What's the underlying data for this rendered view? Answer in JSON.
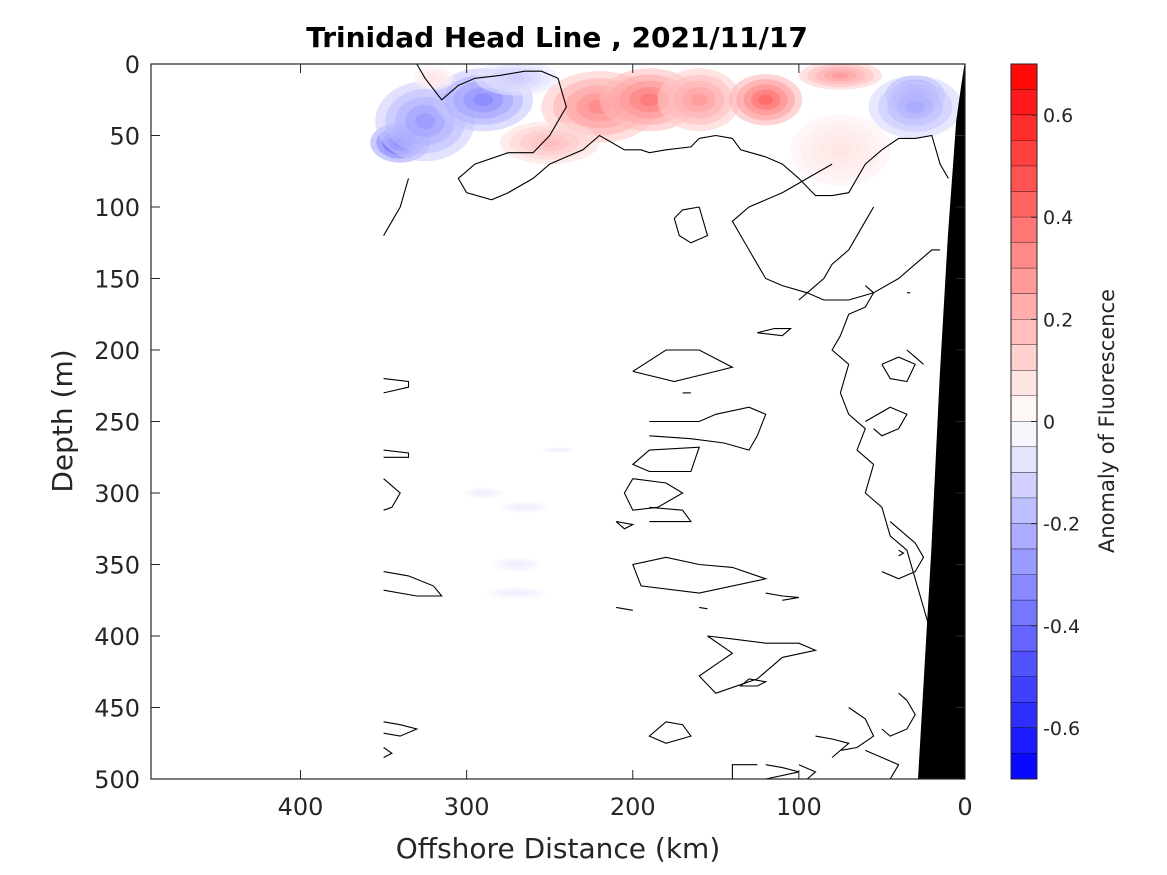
{
  "chart_data": {
    "type": "heatmap",
    "title": "Trinidad Head Line , 2021/11/17",
    "xlabel": "Offshore Distance (km)",
    "ylabel": "Depth (m)",
    "x_reversed": true,
    "y_reversed": true,
    "xlim": [
      490,
      0
    ],
    "ylim": [
      0,
      500
    ],
    "xticks": [
      400,
      300,
      200,
      100,
      0
    ],
    "yticks": [
      0,
      50,
      100,
      150,
      200,
      250,
      300,
      350,
      400,
      450,
      500
    ],
    "colorbar": {
      "label": "Anomaly of Fluorescence",
      "range": [
        -0.7,
        0.7
      ],
      "ticks": [
        0.6,
        0.4,
        0.2,
        0,
        -0.2,
        -0.4,
        -0.6
      ],
      "levels": 28,
      "colors": {
        "low": "#0000ff",
        "zero": "#ffffff",
        "high": "#ff0000"
      }
    },
    "data_extent_km": [
      0,
      350
    ],
    "patches": [
      {
        "x": 340,
        "y": 55,
        "value": -0.55,
        "rx": 18,
        "ry": 14
      },
      {
        "x": 325,
        "y": 40,
        "value": -0.3,
        "rx": 30,
        "ry": 28
      },
      {
        "x": 290,
        "y": 25,
        "value": -0.35,
        "rx": 30,
        "ry": 22
      },
      {
        "x": 270,
        "y": 10,
        "value": -0.15,
        "rx": 25,
        "ry": 12
      },
      {
        "x": 320,
        "y": 10,
        "value": 0.08,
        "rx": 12,
        "ry": 8
      },
      {
        "x": 220,
        "y": 30,
        "value": 0.35,
        "rx": 35,
        "ry": 25
      },
      {
        "x": 190,
        "y": 25,
        "value": 0.4,
        "rx": 30,
        "ry": 22
      },
      {
        "x": 160,
        "y": 25,
        "value": 0.3,
        "rx": 25,
        "ry": 22
      },
      {
        "x": 120,
        "y": 25,
        "value": 0.45,
        "rx": 22,
        "ry": 18
      },
      {
        "x": 75,
        "y": 8,
        "value": 0.3,
        "rx": 25,
        "ry": 10
      },
      {
        "x": 75,
        "y": 60,
        "value": 0.08,
        "rx": 30,
        "ry": 25
      },
      {
        "x": 250,
        "y": 55,
        "value": 0.2,
        "rx": 30,
        "ry": 15
      },
      {
        "x": 30,
        "y": 22,
        "value": -0.55,
        "rx": 18,
        "ry": 14
      },
      {
        "x": 30,
        "y": 30,
        "value": -0.25,
        "rx": 28,
        "ry": 22
      },
      {
        "x": 290,
        "y": 300,
        "value": -0.05,
        "rx": 12,
        "ry": 4
      },
      {
        "x": 265,
        "y": 310,
        "value": -0.05,
        "rx": 15,
        "ry": 4
      },
      {
        "x": 270,
        "y": 350,
        "value": -0.05,
        "rx": 15,
        "ry": 5
      },
      {
        "x": 270,
        "y": 370,
        "value": -0.05,
        "rx": 18,
        "ry": 4
      },
      {
        "x": 245,
        "y": 270,
        "value": -0.05,
        "rx": 10,
        "ry": 2
      }
    ],
    "contours": [
      [
        [
          350,
          0
        ],
        [
          330,
          0
        ],
        [
          325,
          10
        ],
        [
          315,
          25
        ],
        [
          305,
          15
        ],
        [
          295,
          10
        ],
        [
          280,
          8
        ],
        [
          265,
          5
        ],
        [
          255,
          5
        ],
        [
          245,
          10
        ],
        [
          240,
          30
        ],
        [
          250,
          50
        ],
        [
          260,
          62
        ],
        [
          275,
          62
        ],
        [
          295,
          70
        ],
        [
          305,
          80
        ],
        [
          300,
          90
        ],
        [
          285,
          95
        ],
        [
          275,
          90
        ],
        [
          260,
          80
        ],
        [
          250,
          70
        ],
        [
          240,
          65
        ],
        [
          230,
          60
        ],
        [
          220,
          50
        ],
        [
          205,
          60
        ],
        [
          195,
          60
        ],
        [
          190,
          62
        ],
        [
          180,
          60
        ],
        [
          165,
          58
        ],
        [
          160,
          52
        ],
        [
          150,
          50
        ],
        [
          140,
          52
        ],
        [
          135,
          60
        ],
        [
          120,
          65
        ],
        [
          110,
          70
        ],
        [
          100,
          80
        ],
        [
          90,
          92
        ],
        [
          80,
          92
        ],
        [
          70,
          90
        ],
        [
          60,
          70
        ],
        [
          50,
          60
        ],
        [
          40,
          52
        ],
        [
          30,
          52
        ],
        [
          20,
          50
        ],
        [
          15,
          70
        ],
        [
          10,
          80
        ]
      ],
      [
        [
          350,
          120
        ],
        [
          345,
          110
        ],
        [
          340,
          100
        ],
        [
          335,
          80
        ]
      ],
      [
        [
          160,
          100
        ],
        [
          170,
          102
        ],
        [
          175,
          108
        ],
        [
          172,
          120
        ],
        [
          165,
          125
        ],
        [
          155,
          120
        ],
        [
          158,
          108
        ],
        [
          160,
          100
        ]
      ],
      [
        [
          80,
          70
        ],
        [
          95,
          80
        ],
        [
          110,
          90
        ],
        [
          130,
          100
        ],
        [
          140,
          110
        ],
        [
          130,
          130
        ],
        [
          125,
          140
        ],
        [
          120,
          150
        ],
        [
          110,
          155
        ],
        [
          95,
          160
        ],
        [
          85,
          165
        ],
        [
          70,
          165
        ],
        [
          55,
          160
        ],
        [
          40,
          150
        ],
        [
          30,
          140
        ],
        [
          20,
          130
        ],
        [
          15,
          130
        ]
      ],
      [
        [
          115,
          185
        ],
        [
          125,
          188
        ],
        [
          110,
          190
        ],
        [
          105,
          185
        ],
        [
          115,
          185
        ]
      ],
      [
        [
          200,
          215
        ],
        [
          180,
          200
        ],
        [
          160,
          200
        ],
        [
          140,
          212
        ],
        [
          150,
          215
        ],
        [
          175,
          222
        ],
        [
          200,
          215
        ]
      ],
      [
        [
          170,
          230
        ],
        [
          165,
          230
        ]
      ],
      [
        [
          350,
          220
        ],
        [
          335,
          222
        ],
        [
          335,
          226
        ],
        [
          350,
          230
        ]
      ],
      [
        [
          190,
          250
        ],
        [
          160,
          250
        ],
        [
          150,
          245
        ],
        [
          130,
          240
        ],
        [
          120,
          245
        ],
        [
          125,
          260
        ],
        [
          130,
          270
        ],
        [
          145,
          265
        ],
        [
          165,
          262
        ],
        [
          190,
          260
        ]
      ],
      [
        [
          190,
          270
        ],
        [
          160,
          268
        ],
        [
          165,
          285
        ],
        [
          190,
          285
        ],
        [
          200,
          280
        ],
        [
          190,
          270
        ]
      ],
      [
        [
          200,
          290
        ],
        [
          180,
          293
        ],
        [
          170,
          300
        ],
        [
          185,
          310
        ],
        [
          200,
          312
        ],
        [
          205,
          300
        ],
        [
          200,
          290
        ]
      ],
      [
        [
          190,
          310
        ],
        [
          170,
          312
        ],
        [
          165,
          320
        ],
        [
          190,
          320
        ]
      ],
      [
        [
          210,
          320
        ],
        [
          200,
          322
        ],
        [
          205,
          325
        ],
        [
          210,
          320
        ]
      ],
      [
        [
          350,
          270
        ],
        [
          335,
          272
        ],
        [
          335,
          275
        ],
        [
          350,
          275
        ]
      ],
      [
        [
          350,
          290
        ],
        [
          345,
          295
        ],
        [
          340,
          300
        ],
        [
          345,
          310
        ],
        [
          350,
          312
        ]
      ],
      [
        [
          180,
          345
        ],
        [
          160,
          350
        ],
        [
          140,
          352
        ],
        [
          120,
          360
        ],
        [
          160,
          370
        ],
        [
          195,
          365
        ],
        [
          200,
          350
        ],
        [
          180,
          345
        ]
      ],
      [
        [
          350,
          355
        ],
        [
          335,
          358
        ],
        [
          320,
          365
        ],
        [
          315,
          372
        ],
        [
          330,
          372
        ],
        [
          350,
          368
        ]
      ],
      [
        [
          120,
          370
        ],
        [
          110,
          372
        ],
        [
          100,
          373
        ],
        [
          110,
          375
        ]
      ],
      [
        [
          210,
          380
        ],
        [
          200,
          382
        ]
      ],
      [
        [
          160,
          380
        ],
        [
          155,
          381
        ]
      ],
      [
        [
          155,
          400
        ],
        [
          140,
          402
        ],
        [
          120,
          405
        ],
        [
          100,
          405
        ],
        [
          90,
          410
        ],
        [
          110,
          415
        ],
        [
          125,
          430
        ],
        [
          150,
          440
        ],
        [
          160,
          428
        ],
        [
          150,
          420
        ],
        [
          140,
          412
        ],
        [
          155,
          400
        ]
      ],
      [
        [
          130,
          430
        ],
        [
          120,
          432
        ],
        [
          125,
          435
        ],
        [
          135,
          435
        ],
        [
          130,
          430
        ]
      ],
      [
        [
          350,
          460
        ],
        [
          340,
          462
        ],
        [
          330,
          465
        ],
        [
          340,
          470
        ],
        [
          350,
          468
        ]
      ],
      [
        [
          350,
          478
        ],
        [
          345,
          482
        ],
        [
          350,
          485
        ]
      ],
      [
        [
          180,
          460
        ],
        [
          170,
          462
        ],
        [
          165,
          470
        ],
        [
          180,
          475
        ],
        [
          190,
          470
        ],
        [
          180,
          460
        ]
      ],
      [
        [
          120,
          490
        ],
        [
          110,
          492
        ],
        [
          100,
          495
        ],
        [
          120,
          500
        ]
      ],
      [
        [
          140,
          500
        ],
        [
          140,
          490
        ],
        [
          125,
          490
        ]
      ],
      [
        [
          55,
          100
        ],
        [
          60,
          110
        ],
        [
          70,
          130
        ],
        [
          80,
          140
        ],
        [
          85,
          150
        ],
        [
          95,
          160
        ],
        [
          100,
          165
        ]
      ],
      [
        [
          60,
          155
        ],
        [
          55,
          160
        ],
        [
          60,
          170
        ],
        [
          70,
          175
        ],
        [
          75,
          190
        ],
        [
          80,
          200
        ],
        [
          70,
          210
        ],
        [
          75,
          230
        ],
        [
          70,
          245
        ],
        [
          60,
          255
        ],
        [
          65,
          270
        ],
        [
          55,
          280
        ],
        [
          60,
          300
        ],
        [
          50,
          310
        ],
        [
          45,
          330
        ],
        [
          35,
          340
        ],
        [
          30,
          360
        ],
        [
          25,
          380
        ],
        [
          20,
          400
        ],
        [
          15,
          420
        ],
        [
          10,
          440
        ],
        [
          5,
          460
        ],
        [
          3,
          480
        ],
        [
          2,
          500
        ]
      ],
      [
        [
          50,
          210
        ],
        [
          40,
          205
        ],
        [
          30,
          210
        ],
        [
          35,
          222
        ],
        [
          45,
          220
        ],
        [
          50,
          210
        ]
      ],
      [
        [
          60,
          250
        ],
        [
          45,
          240
        ],
        [
          35,
          245
        ],
        [
          40,
          255
        ],
        [
          50,
          260
        ],
        [
          55,
          255
        ]
      ],
      [
        [
          45,
          320
        ],
        [
          35,
          330
        ],
        [
          30,
          335
        ],
        [
          25,
          345
        ],
        [
          30,
          355
        ],
        [
          40,
          360
        ],
        [
          50,
          355
        ]
      ],
      [
        [
          40,
          440
        ],
        [
          35,
          445
        ],
        [
          30,
          455
        ],
        [
          35,
          465
        ],
        [
          45,
          470
        ],
        [
          50,
          465
        ]
      ],
      [
        [
          70,
          450
        ],
        [
          60,
          458
        ],
        [
          55,
          470
        ],
        [
          65,
          478
        ],
        [
          75,
          480
        ]
      ],
      [
        [
          60,
          480
        ],
        [
          50,
          485
        ],
        [
          40,
          490
        ],
        [
          45,
          500
        ]
      ],
      [
        [
          90,
          470
        ],
        [
          80,
          472
        ],
        [
          70,
          475
        ],
        [
          80,
          485
        ]
      ],
      [
        [
          100,
          490
        ],
        [
          90,
          495
        ],
        [
          95,
          500
        ]
      ],
      [
        [
          35,
          200
        ],
        [
          30,
          205
        ],
        [
          25,
          210
        ]
      ],
      [
        [
          40,
          340
        ],
        [
          37,
          342
        ],
        [
          40,
          344
        ]
      ],
      [
        [
          35,
          160
        ],
        [
          33,
          160
        ]
      ]
    ],
    "bathymetry": [
      [
        0,
        0
      ],
      [
        2,
        15
      ],
      [
        5,
        40
      ],
      [
        10,
        120
      ],
      [
        15,
        220
      ],
      [
        20,
        340
      ],
      [
        25,
        440
      ],
      [
        28,
        500
      ],
      [
        0,
        500
      ]
    ]
  }
}
